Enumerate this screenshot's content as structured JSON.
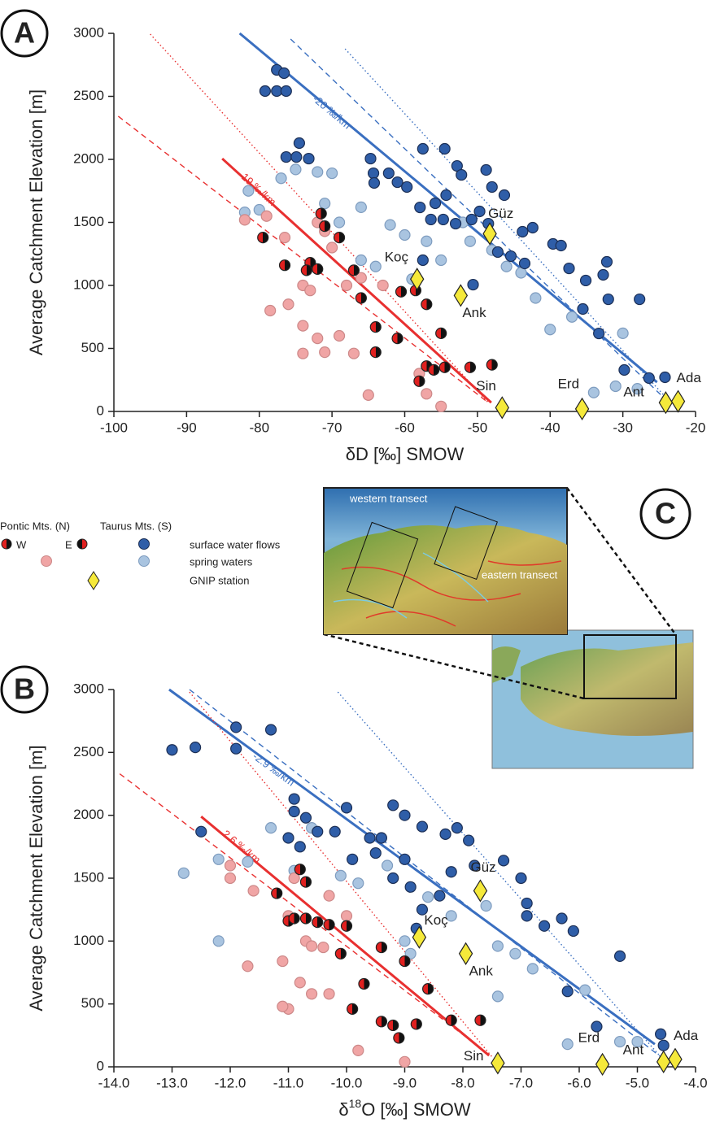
{
  "chart_data": [
    {
      "type": "scatter",
      "panel": "A",
      "y_label": "Average Catchment Elevation [m]",
      "x_label": [
        "δD [‰] SMOW"
      ],
      "xlim": [
        -100,
        -20
      ],
      "xticks": [
        -100,
        -90,
        -80,
        -70,
        -60,
        -50,
        -40,
        -30,
        -20
      ],
      "ylim": [
        0,
        3000
      ],
      "yticks": [
        0,
        500,
        1000,
        1500,
        2000,
        2500,
        3000
      ],
      "series": [
        {
          "color": "#a9c4e0",
          "x": [
            -81.5,
            -82,
            -80,
            -77,
            -75,
            -72,
            -70,
            -71,
            -69,
            -66,
            -66,
            -64,
            -62,
            -60,
            -57,
            -55,
            -52,
            -51,
            -48,
            -46,
            -44,
            -42,
            -40,
            -37,
            -34,
            -30,
            -31,
            -28,
            -59
          ],
          "y": [
            1750,
            1580,
            1600,
            1850,
            1920,
            1900,
            1890,
            1650,
            1500,
            1620,
            1200,
            1150,
            1480,
            1400,
            1350,
            1200,
            1500,
            1350,
            1280,
            1150,
            1100,
            900,
            650,
            750,
            150,
            620,
            200,
            180,
            1050
          ]
        },
        {
          "color": "#f0a5a5",
          "x": [
            -78.5,
            -76,
            -76.5,
            -74,
            -73,
            -72,
            -71,
            -70,
            -74,
            -74,
            -72,
            -71,
            -69,
            -67,
            -68,
            -66,
            -63,
            -65,
            -58,
            -57,
            -55,
            -82,
            -79
          ],
          "y": [
            800,
            850,
            1380,
            1000,
            960,
            1500,
            1430,
            1300,
            680,
            460,
            580,
            470,
            600,
            460,
            1000,
            1060,
            1000,
            130,
            300,
            140,
            40,
            1520,
            1550
          ]
        },
        {
          "color": "#2f5ea8",
          "x": [
            -77.6,
            -76.6,
            -79.2,
            -77.6,
            -76.3,
            -74.5,
            -76.3,
            -74.9,
            -73.2,
            -64.7,
            -64.3,
            -64.2,
            -62.2,
            -61.0,
            -59.7,
            -57.5,
            -54.5,
            -52.8,
            -52.2,
            -48.8,
            -48.0,
            -46.3,
            -54.3,
            -55.8,
            -57.9,
            -56.4,
            -54.7,
            -53.0,
            -50.8,
            -49.7,
            -48.5,
            -47.2,
            -45.4,
            -43.8,
            -42.4,
            -39.6,
            -38.5,
            -37.4,
            -35.1,
            -32.2,
            -32.7,
            -35.5,
            -33.3,
            -32.0,
            -27.7,
            -29.8,
            -26.4,
            -24.2,
            -43.5,
            -50.6,
            -57.5
          ],
          "y": [
            2710,
            2684,
            2542,
            2542,
            2542,
            2129,
            2019,
            2019,
            2006,
            2006,
            1890,
            1813,
            1890,
            1819,
            1781,
            2084,
            2084,
            1948,
            1877,
            1916,
            1781,
            1716,
            1716,
            1652,
            1619,
            1523,
            1523,
            1490,
            1523,
            1587,
            1490,
            1265,
            1232,
            1426,
            1458,
            1329,
            1316,
            1135,
            1039,
            1187,
            1084,
            813,
            619,
            890,
            890,
            329,
            265,
            271,
            1174,
            1006,
            1200
          ]
        },
        {
          "color": "#e0201f",
          "x": [
            -79.5,
            -76.5,
            -73,
            -72,
            -71.5,
            -71,
            -69,
            -67,
            -66,
            -64,
            -64,
            -61,
            -60.5,
            -58.5,
            -57,
            -55,
            -57,
            -56,
            -54.5,
            -58,
            -51,
            -48,
            -73.5
          ],
          "y": [
            1380,
            1160,
            1180,
            1130,
            1570,
            1470,
            1380,
            1120,
            900,
            670,
            470,
            580,
            950,
            960,
            850,
            620,
            360,
            330,
            350,
            240,
            350,
            370,
            1120
          ]
        },
        {
          "color": "#f5e93a",
          "labels": [
            "Güz",
            "Koç",
            "Ank",
            "Sin",
            "Erd",
            "Ant",
            "Ada"
          ],
          "x": [
            -48.3,
            -58.3,
            -52.3,
            -46.6,
            -35.6,
            -24.1,
            -22.4
          ],
          "y": [
            1410,
            1050,
            920,
            30,
            20,
            70,
            80
          ]
        }
      ],
      "lines": [
        {
          "color": "#3a6fc0",
          "style": "solid",
          "x": [
            -82.7,
            -25.3
          ],
          "y": [
            3000,
            232
          ]
        },
        {
          "color": "#3a6fc0",
          "style": "dashed",
          "x": [
            -75.7,
            -24.2
          ],
          "y": [
            2955,
            100
          ]
        },
        {
          "color": "#3a6fc0",
          "style": "dotted",
          "x": [
            -68.2,
            -23.9
          ],
          "y": [
            2877,
            100
          ]
        },
        {
          "color": "#e83030",
          "style": "solid",
          "x": [
            -85.1,
            -48.1
          ],
          "y": [
            2006,
            70
          ]
        },
        {
          "color": "#e83030",
          "style": "dashed",
          "x": [
            -99.4,
            -48.5
          ],
          "y": [
            2342,
            70
          ]
        },
        {
          "color": "#e83030",
          "style": "dotted",
          "x": [
            -95,
            -48.5
          ],
          "y": [
            2994,
            70
          ]
        }
      ],
      "line_labels": [
        "-20 ‰/km",
        "19 ‰/km"
      ]
    },
    {
      "type": "scatter",
      "panel": "B",
      "y_label": "Average Catchment Elevation [m]",
      "x_label": [
        "δ",
        "18",
        "O [‰] SMOW"
      ],
      "xlim": [
        -14,
        -4
      ],
      "xticks": [
        {
          "value": -14,
          "label": "-14.0"
        },
        {
          "value": -13,
          "label": "-13.0"
        },
        {
          "value": -12,
          "label": "-12.0"
        },
        {
          "value": -11,
          "label": "-11.0"
        },
        {
          "value": -10,
          "label": "-10.0"
        },
        {
          "value": -9,
          "label": "-9.0"
        },
        {
          "value": -8,
          "label": "-8.0"
        },
        {
          "value": -7,
          "label": "-7.0"
        },
        {
          "value": -6,
          "label": "-6.0"
        },
        {
          "value": -5,
          "label": "-5.0"
        },
        {
          "value": -4,
          "label": "-4.0"
        }
      ],
      "ylim": [
        0,
        3000
      ],
      "yticks": [
        0,
        500,
        1000,
        1500,
        2000,
        2500,
        3000
      ],
      "series": [
        {
          "color": "#a9c4e0",
          "x": [
            -12.8,
            -12.2,
            -12.2,
            -11.7,
            -11.3,
            -10.9,
            -10.6,
            -10.1,
            -9.8,
            -9.3,
            -9.0,
            -8.9,
            -8.6,
            -8.2,
            -7.6,
            -7.4,
            -7.1,
            -6.8,
            -7.4,
            -5.9,
            -6.2,
            -5.3,
            -5.0
          ],
          "y": [
            1540,
            1650,
            1000,
            1630,
            1900,
            1560,
            1900,
            1520,
            1460,
            1600,
            1000,
            900,
            1350,
            1200,
            1280,
            960,
            900,
            780,
            560,
            610,
            180,
            200,
            200
          ]
        },
        {
          "color": "#f0a5a5",
          "x": [
            -12.0,
            -12.0,
            -11.6,
            -11.7,
            -11.0,
            -10.9,
            -10.7,
            -10.6,
            -10.4,
            -10.3,
            -10.0,
            -10.8,
            -10.6,
            -11.0,
            -11.1,
            -10.3,
            -9.8,
            -9.0,
            -11.1
          ],
          "y": [
            1600,
            1500,
            1400,
            800,
            1200,
            1500,
            1000,
            960,
            950,
            1360,
            1200,
            670,
            580,
            460,
            480,
            580,
            130,
            40,
            840
          ]
        },
        {
          "color": "#2f5ea8",
          "x": [
            -13,
            -12.6,
            -11.9,
            -11.9,
            -11.3,
            -12.5,
            -10.9,
            -10.9,
            -10.7,
            -10.5,
            -10.2,
            -10,
            -9.6,
            -9.4,
            -9.2,
            -9.0,
            -8.7,
            -8.3,
            -8.1,
            -7.9,
            -9.0,
            -9.2,
            -8.9,
            -8.7,
            -8.4,
            -8.2,
            -7.8,
            -7.3,
            -7.0,
            -6.9,
            -6.9,
            -6.6,
            -6.3,
            -6.1,
            -6.2,
            -5.7,
            -5.3,
            -4.6,
            -4.55,
            -10.8,
            -9.9,
            -9.5,
            -8.8,
            -11.0
          ],
          "y": [
            2520,
            2540,
            2700,
            2530,
            2680,
            1870,
            2130,
            2030,
            1980,
            1870,
            1870,
            2060,
            1820,
            1820,
            2080,
            2000,
            1910,
            1850,
            1900,
            1800,
            1650,
            1500,
            1430,
            1250,
            1360,
            1550,
            1600,
            1640,
            1500,
            1300,
            1200,
            1120,
            1180,
            1080,
            600,
            320,
            880,
            260,
            170,
            1750,
            1650,
            1700,
            1100,
            1820
          ]
        },
        {
          "color": "#e0201f",
          "x": [
            -11.2,
            -10.8,
            -10.7,
            -11.0,
            -10.7,
            -10.5,
            -10.0,
            -10.1,
            -9.7,
            -9.9,
            -9.4,
            -9.4,
            -9.2,
            -9.0,
            -8.8,
            -8.6,
            -9.1,
            -8.2,
            -7.7,
            -10.3,
            -10.9
          ],
          "y": [
            1380,
            1570,
            1470,
            1160,
            1180,
            1150,
            1120,
            900,
            660,
            460,
            950,
            360,
            330,
            840,
            340,
            620,
            230,
            370,
            370,
            1130,
            1180
          ]
        },
        {
          "color": "#f5e93a",
          "labels": [
            "Güz",
            "Koç",
            "Ank",
            "Sin",
            "Erd",
            "Ant",
            "Ada"
          ],
          "x": [
            -7.7,
            -8.75,
            -7.95,
            -7.4,
            -5.6,
            -4.55,
            -4.35
          ],
          "y": [
            1400,
            1030,
            900,
            30,
            20,
            40,
            60
          ]
        }
      ],
      "lines": [
        {
          "color": "#3a6fc0",
          "style": "solid",
          "x": [
            -13.05,
            -4.7
          ],
          "y": [
            3000,
            180
          ]
        },
        {
          "color": "#3a6fc0",
          "style": "dashed",
          "x": [
            -12.7,
            -4.6
          ],
          "y": [
            3000,
            80
          ]
        },
        {
          "color": "#3a6fc0",
          "style": "dotted",
          "x": [
            -10.15,
            -4.6
          ],
          "y": [
            2980,
            80
          ]
        },
        {
          "color": "#e83030",
          "style": "solid",
          "x": [
            -12.5,
            -7.55
          ],
          "y": [
            1990,
            90
          ]
        },
        {
          "color": "#e83030",
          "style": "dashed",
          "x": [
            -13.9,
            -7.5
          ],
          "y": [
            2330,
            80
          ]
        },
        {
          "color": "#e83030",
          "style": "dotted",
          "x": [
            -12.7,
            -7.5
          ],
          "y": [
            2980,
            80
          ]
        }
      ],
      "line_labels": [
        "-2.9 ‰/km",
        "2.6 ‰/km"
      ]
    }
  ],
  "legend": {
    "pontic": "Pontic Mts. (N)",
    "taurus": "Taurus Mts. (S)",
    "w": "W",
    "e": "E",
    "items": [
      "surface water flows",
      "spring waters",
      "GNIP station"
    ]
  },
  "map": {
    "panel": "C",
    "western": "western transect",
    "eastern": "eastern transect"
  }
}
